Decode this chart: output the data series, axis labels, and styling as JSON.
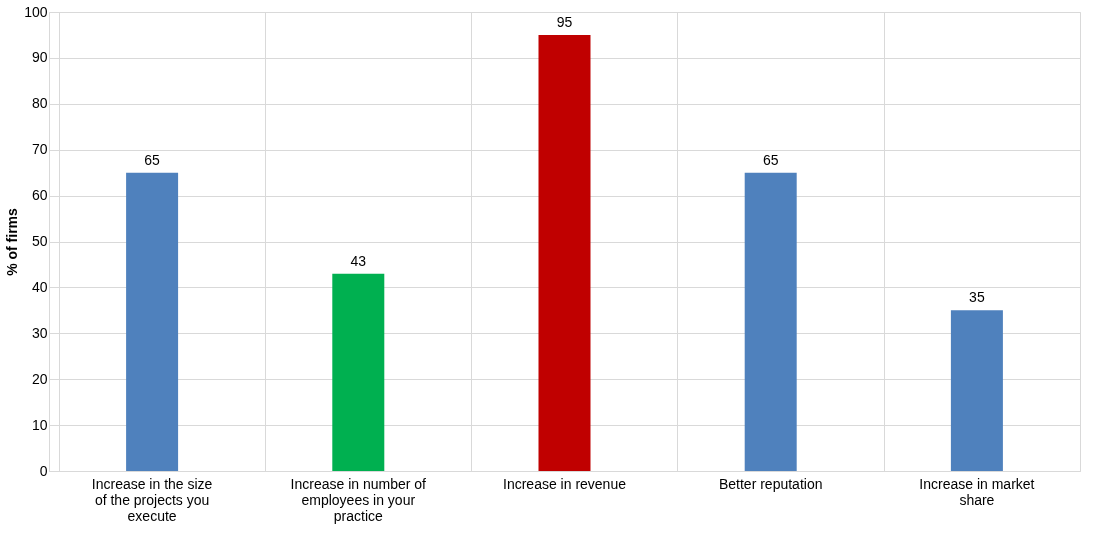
{
  "chart_data": {
    "type": "bar",
    "ylabel": "% of firms",
    "categories": [
      "Increase in the size of the projects you execute",
      "Increase in number of employees in your practice",
      "Increase in revenue",
      "Better reputation",
      "Increase in market share"
    ],
    "values": [
      65,
      43,
      95,
      65,
      35
    ],
    "colors": [
      "#4f81bd",
      "#00b050",
      "#c00000",
      "#4f81bd",
      "#4f81bd"
    ],
    "ylim": [
      0,
      100
    ],
    "yticks": [
      0,
      10,
      20,
      30,
      40,
      50,
      60,
      70,
      80,
      90,
      100
    ],
    "grid": true,
    "data_labels": true
  }
}
